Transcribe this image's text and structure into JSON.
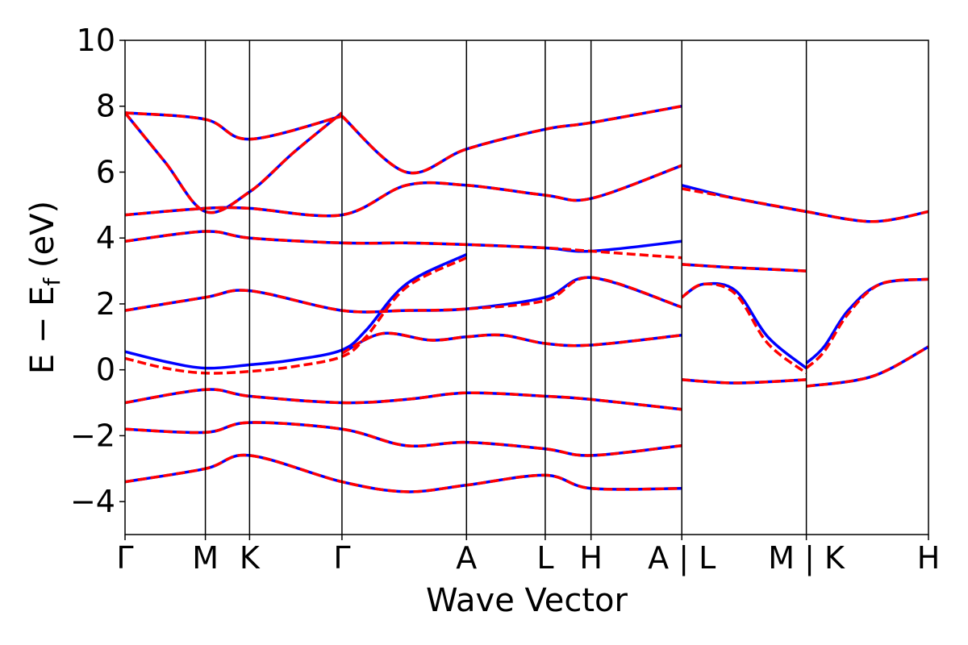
{
  "chart_data": {
    "type": "line",
    "title": "",
    "xlabel": "Wave Vector",
    "ylabel": "E − E_f (eV)",
    "ylabel_parts": {
      "main": "E − E",
      "sub": "f",
      "unit": " (eV)"
    },
    "ylim": [
      -5,
      10
    ],
    "yticks": [
      -4,
      -2,
      0,
      2,
      4,
      6,
      8,
      10
    ],
    "ytick_labels": [
      "−4",
      "−2",
      "0",
      "2",
      "4",
      "6",
      "8",
      "10"
    ],
    "kpath": [
      {
        "label": "Γ",
        "x": 0.0
      },
      {
        "label": "M",
        "x": 0.1
      },
      {
        "label": "K",
        "x": 0.155
      },
      {
        "label": "Γ",
        "x": 0.27
      },
      {
        "label": "A",
        "x": 0.425
      },
      {
        "label": "L",
        "x": 0.523
      },
      {
        "label": "H",
        "x": 0.58
      },
      {
        "label": "A | L",
        "x": 0.693
      },
      {
        "label": "M | K",
        "x": 0.848
      },
      {
        "label": "H",
        "x": 1.0
      }
    ],
    "series_style": [
      {
        "color": "#0000ff",
        "dash": "solid"
      },
      {
        "color": "#ff0000",
        "dash": "dashed"
      }
    ],
    "series": [
      {
        "bands": [
          {
            "x": [
              0.0,
              0.05,
              0.1,
              0.155,
              0.21,
              0.27,
              0.3,
              0.35,
              0.425
            ],
            "y": [
              0.55,
              0.25,
              0.05,
              0.15,
              0.3,
              0.6,
              1.2,
              2.6,
              3.5
            ]
          },
          {
            "x": [
              0.693,
              0.72,
              0.76,
              0.8,
              0.848
            ],
            "y": [
              2.2,
              2.6,
              2.4,
              1.0,
              0.05
            ]
          },
          {
            "x": [
              0.848,
              0.87,
              0.9,
              0.94,
              1.0
            ],
            "y": [
              0.2,
              0.7,
              1.8,
              2.6,
              2.75
            ]
          },
          {
            "x": [
              0.0,
              0.1,
              0.155,
              0.27,
              0.35,
              0.425,
              0.523,
              0.58,
              0.693
            ],
            "y": [
              1.8,
              2.2,
              2.4,
              1.8,
              1.8,
              1.85,
              2.2,
              2.8,
              1.9
            ]
          },
          {
            "x": [
              0.0,
              0.1,
              0.155,
              0.27,
              0.35,
              0.425,
              0.523,
              0.58,
              0.693
            ],
            "y": [
              3.9,
              4.2,
              4.0,
              3.85,
              3.85,
              3.8,
              3.7,
              3.6,
              3.9
            ]
          },
          {
            "x": [
              0.0,
              0.1,
              0.155,
              0.27,
              0.35,
              0.425,
              0.523,
              0.58,
              0.693
            ],
            "y": [
              4.7,
              4.9,
              4.9,
              4.7,
              5.6,
              5.6,
              5.3,
              5.2,
              6.2
            ]
          },
          {
            "x": [
              0.0,
              0.05,
              0.1,
              0.155,
              0.21,
              0.27
            ],
            "y": [
              7.8,
              6.3,
              4.8,
              5.4,
              6.6,
              7.8
            ]
          },
          {
            "x": [
              0.0,
              0.1,
              0.155,
              0.27
            ],
            "y": [
              7.8,
              7.6,
              7.0,
              7.7
            ]
          },
          {
            "x": [
              0.27,
              0.35,
              0.425,
              0.523,
              0.58,
              0.693
            ],
            "y": [
              7.7,
              6.0,
              6.7,
              7.3,
              7.5,
              8.0
            ]
          },
          {
            "x": [
              0.0,
              0.1,
              0.155,
              0.27,
              0.35,
              0.425,
              0.523,
              0.58,
              0.693
            ],
            "y": [
              -1.0,
              -0.6,
              -0.8,
              -1.0,
              -0.9,
              -0.7,
              -0.8,
              -0.9,
              -1.2
            ]
          },
          {
            "x": [
              0.0,
              0.1,
              0.155,
              0.27,
              0.35,
              0.425,
              0.523,
              0.58,
              0.693
            ],
            "y": [
              -1.8,
              -1.9,
              -1.6,
              -1.8,
              -2.3,
              -2.2,
              -2.4,
              -2.6,
              -2.3
            ]
          },
          {
            "x": [
              0.0,
              0.1,
              0.155,
              0.27,
              0.35,
              0.425,
              0.523,
              0.58,
              0.693
            ],
            "y": [
              -3.4,
              -3.0,
              -2.6,
              -3.4,
              -3.7,
              -3.5,
              -3.2,
              -3.6,
              -3.6
            ]
          },
          {
            "x": [
              0.27,
              0.32,
              0.38,
              0.425,
              0.47,
              0.523,
              0.58,
              0.693
            ],
            "y": [
              0.5,
              1.1,
              0.9,
              1.0,
              1.05,
              0.8,
              0.75,
              1.05
            ]
          },
          {
            "x": [
              0.693,
              0.76,
              0.848
            ],
            "y": [
              5.6,
              5.2,
              4.8
            ]
          },
          {
            "x": [
              0.693,
              0.76,
              0.848
            ],
            "y": [
              3.2,
              3.1,
              3.0
            ]
          },
          {
            "x": [
              0.693,
              0.76,
              0.848
            ],
            "y": [
              -0.3,
              -0.4,
              -0.3
            ]
          },
          {
            "x": [
              0.848,
              0.93,
              1.0
            ],
            "y": [
              4.8,
              4.5,
              4.8
            ]
          },
          {
            "x": [
              0.848,
              0.93,
              1.0
            ],
            "y": [
              -0.5,
              -0.2,
              0.7
            ]
          }
        ]
      },
      {
        "bands": [
          {
            "x": [
              0.0,
              0.05,
              0.1,
              0.155,
              0.21,
              0.27,
              0.3,
              0.35,
              0.425
            ],
            "y": [
              0.35,
              0.05,
              -0.1,
              -0.05,
              0.1,
              0.4,
              1.0,
              2.5,
              3.4
            ]
          },
          {
            "x": [
              0.693,
              0.72,
              0.76,
              0.8,
              0.848
            ],
            "y": [
              2.2,
              2.6,
              2.3,
              0.8,
              -0.1
            ]
          },
          {
            "x": [
              0.848,
              0.87,
              0.9,
              0.94,
              1.0
            ],
            "y": [
              0.05,
              0.55,
              1.7,
              2.6,
              2.75
            ]
          },
          {
            "x": [
              0.0,
              0.1,
              0.155,
              0.27,
              0.35,
              0.425,
              0.523,
              0.58,
              0.693
            ],
            "y": [
              1.8,
              2.2,
              2.4,
              1.8,
              1.8,
              1.85,
              2.1,
              2.8,
              1.9
            ]
          },
          {
            "x": [
              0.0,
              0.1,
              0.155,
              0.27,
              0.35,
              0.425,
              0.523,
              0.58,
              0.693
            ],
            "y": [
              3.9,
              4.2,
              4.0,
              3.85,
              3.85,
              3.8,
              3.7,
              3.6,
              3.4
            ]
          },
          {
            "x": [
              0.0,
              0.1,
              0.155,
              0.27,
              0.35,
              0.425,
              0.523,
              0.58,
              0.693
            ],
            "y": [
              4.7,
              4.9,
              4.9,
              4.7,
              5.6,
              5.6,
              5.3,
              5.2,
              6.2
            ]
          },
          {
            "x": [
              0.0,
              0.05,
              0.1,
              0.155,
              0.21,
              0.27
            ],
            "y": [
              7.8,
              6.3,
              4.8,
              5.4,
              6.6,
              7.8
            ]
          },
          {
            "x": [
              0.0,
              0.1,
              0.155,
              0.27
            ],
            "y": [
              7.8,
              7.6,
              7.0,
              7.7
            ]
          },
          {
            "x": [
              0.27,
              0.35,
              0.425,
              0.523,
              0.58,
              0.693
            ],
            "y": [
              7.7,
              6.0,
              6.7,
              7.3,
              7.5,
              8.0
            ]
          },
          {
            "x": [
              0.0,
              0.1,
              0.155,
              0.27,
              0.35,
              0.425,
              0.523,
              0.58,
              0.693
            ],
            "y": [
              -1.0,
              -0.6,
              -0.8,
              -1.0,
              -0.9,
              -0.7,
              -0.8,
              -0.9,
              -1.2
            ]
          },
          {
            "x": [
              0.0,
              0.1,
              0.155,
              0.27,
              0.35,
              0.425,
              0.523,
              0.58,
              0.693
            ],
            "y": [
              -1.8,
              -1.9,
              -1.6,
              -1.8,
              -2.3,
              -2.2,
              -2.4,
              -2.6,
              -2.3
            ]
          },
          {
            "x": [
              0.0,
              0.1,
              0.155,
              0.27,
              0.35,
              0.425,
              0.523,
              0.58,
              0.693
            ],
            "y": [
              -3.4,
              -3.0,
              -2.6,
              -3.4,
              -3.7,
              -3.5,
              -3.2,
              -3.6,
              -3.6
            ]
          },
          {
            "x": [
              0.27,
              0.32,
              0.38,
              0.425,
              0.47,
              0.523,
              0.58,
              0.693
            ],
            "y": [
              0.5,
              1.1,
              0.9,
              1.0,
              1.05,
              0.8,
              0.75,
              1.05
            ]
          },
          {
            "x": [
              0.693,
              0.76,
              0.848
            ],
            "y": [
              5.5,
              5.2,
              4.8
            ]
          },
          {
            "x": [
              0.693,
              0.76,
              0.848
            ],
            "y": [
              3.2,
              3.1,
              3.0
            ]
          },
          {
            "x": [
              0.693,
              0.76,
              0.848
            ],
            "y": [
              -0.3,
              -0.4,
              -0.3
            ]
          },
          {
            "x": [
              0.848,
              0.93,
              1.0
            ],
            "y": [
              4.8,
              4.5,
              4.8
            ]
          },
          {
            "x": [
              0.848,
              0.93,
              1.0
            ],
            "y": [
              -0.5,
              -0.2,
              0.7
            ]
          }
        ]
      }
    ]
  }
}
